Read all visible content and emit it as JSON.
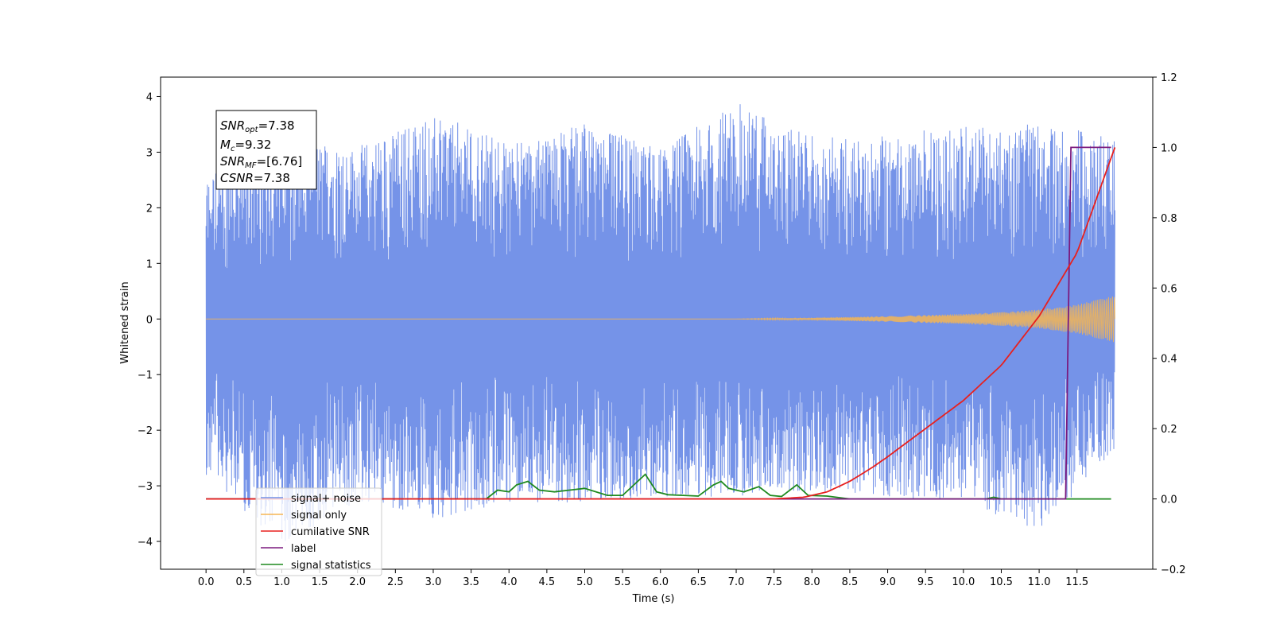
{
  "chart_data": {
    "type": "line",
    "xlabel": "Time (s)",
    "ylabel": "Whitened strain",
    "xlim": [
      -0.6,
      12.5
    ],
    "ylim": [
      -4.5,
      4.35
    ],
    "y2lim": [
      -0.2,
      1.2
    ],
    "xticks": [
      "0.0",
      "0.5",
      "1.0",
      "1.5",
      "2.0",
      "2.5",
      "3.0",
      "3.5",
      "4.0",
      "4.5",
      "5.0",
      "5.5",
      "6.0",
      "6.5",
      "7.0",
      "7.5",
      "8.0",
      "8.5",
      "9.0",
      "9.5",
      "10.0",
      "10.5",
      "11.0",
      "11.5"
    ],
    "yticks": [
      "4",
      "3",
      "2",
      "1",
      "0",
      "−1",
      "−2",
      "−3",
      "−4"
    ],
    "y2ticks": [
      "1.2",
      "1.0",
      "0.8",
      "0.6",
      "0.4",
      "0.2",
      "0.0",
      "−0.2"
    ],
    "grid": false,
    "legend_position": "lower-left",
    "annotation": {
      "lines": [
        {
          "base": "SNR",
          "sub": "opt",
          "rest": "=7.38"
        },
        {
          "base": "M",
          "sub": "c",
          "rest": "=9.32"
        },
        {
          "base": "SNR",
          "sub": "MF",
          "rest": "=[6.76]"
        },
        {
          "base": "CSNR",
          "sub": "",
          "rest": "=7.38"
        }
      ]
    },
    "noise_envelope": {
      "x": [
        0.0,
        1.0,
        2.0,
        3.0,
        4.0,
        5.0,
        6.0,
        7.0,
        8.0,
        9.0,
        10.0,
        11.0,
        12.0
      ],
      "upper": [
        2.6,
        3.2,
        3.1,
        3.7,
        3.2,
        3.5,
        3.1,
        3.9,
        3.3,
        3.3,
        3.5,
        3.5,
        3.3
      ],
      "lower": [
        -2.8,
        -4.1,
        -3.3,
        -3.6,
        -3.3,
        -3.3,
        -3.2,
        -3.2,
        -3.1,
        -3.2,
        -3.3,
        -3.8,
        -2.4
      ]
    },
    "series": [
      {
        "name": "signal+ noise",
        "color": "#7593e8",
        "axis": "left"
      },
      {
        "name": "signal only",
        "color": "#f5b553",
        "axis": "left",
        "amplitude": {
          "x": [
            0.0,
            7.0,
            8.0,
            9.0,
            10.0,
            10.5,
            11.0,
            11.5,
            12.0
          ],
          "values": [
            0.0,
            0.0,
            0.02,
            0.05,
            0.09,
            0.12,
            0.17,
            0.26,
            0.42
          ]
        }
      },
      {
        "name": "cumilative SNR",
        "color": "#e8201e",
        "axis": "right",
        "x": [
          0.0,
          7.5,
          7.9,
          8.2,
          8.5,
          8.8,
          9.0,
          9.5,
          10.0,
          10.5,
          11.0,
          11.5,
          12.0
        ],
        "values": [
          0.0,
          0.0,
          0.005,
          0.02,
          0.05,
          0.09,
          0.12,
          0.2,
          0.28,
          0.38,
          0.52,
          0.7,
          1.0
        ]
      },
      {
        "name": "label",
        "color": "#7b1a7e",
        "axis": "right",
        "x": [
          0.0,
          11.35,
          11.42,
          11.95
        ],
        "values": [
          0.0,
          0.0,
          1.0,
          1.0
        ]
      },
      {
        "name": "signal statistics",
        "color": "#1f8a1f",
        "axis": "right",
        "x": [
          0.0,
          3.7,
          3.85,
          4.0,
          4.1,
          4.25,
          4.4,
          4.6,
          4.8,
          5.0,
          5.3,
          5.5,
          5.65,
          5.8,
          5.95,
          6.1,
          6.3,
          6.5,
          6.7,
          6.8,
          6.9,
          7.1,
          7.3,
          7.45,
          7.6,
          7.8,
          7.95,
          8.2,
          8.5,
          10.3,
          10.4,
          10.5,
          11.95
        ],
        "values": [
          0.0,
          0.0,
          0.025,
          0.02,
          0.04,
          0.05,
          0.025,
          0.02,
          0.025,
          0.03,
          0.01,
          0.01,
          0.04,
          0.07,
          0.02,
          0.012,
          0.01,
          0.008,
          0.04,
          0.05,
          0.03,
          0.02,
          0.035,
          0.01,
          0.007,
          0.04,
          0.01,
          0.008,
          0.0,
          0.0,
          0.005,
          0.0,
          0.0
        ]
      }
    ]
  }
}
